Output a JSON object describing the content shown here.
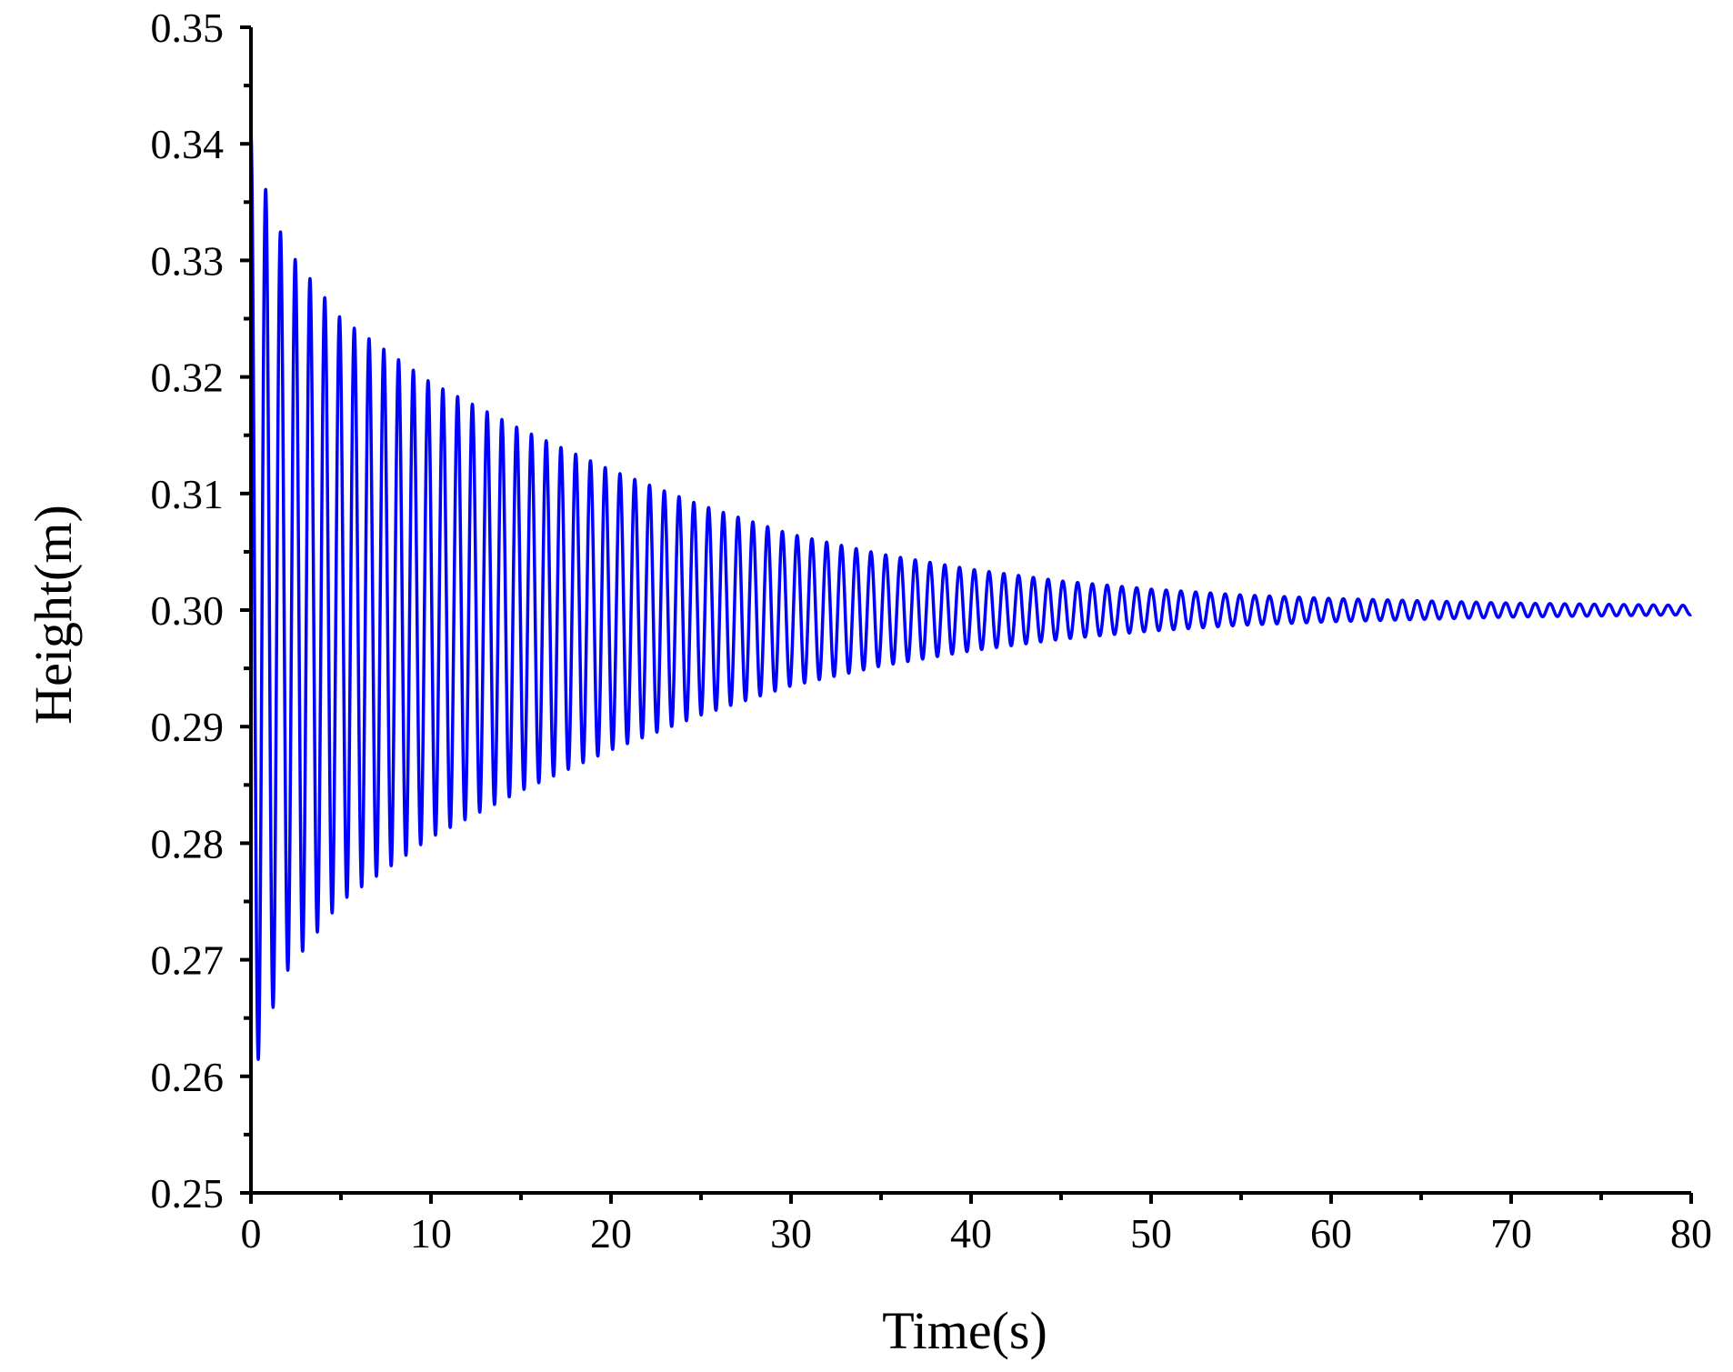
{
  "chart_data": {
    "type": "line",
    "title": "",
    "xlabel": "Time(s)",
    "ylabel": "Height(m)",
    "xlim": [
      0,
      80
    ],
    "ylim": [
      0.25,
      0.35
    ],
    "x_ticks": [
      0,
      10,
      20,
      30,
      40,
      50,
      60,
      70,
      80
    ],
    "x_tick_labels": [
      "0",
      "10",
      "20",
      "30",
      "40",
      "50",
      "60",
      "70",
      "80"
    ],
    "y_ticks": [
      0.25,
      0.26,
      0.27,
      0.28,
      0.29,
      0.3,
      0.31,
      0.32,
      0.33,
      0.34,
      0.35
    ],
    "y_tick_labels": [
      "0.25",
      "0.26",
      "0.27",
      "0.28",
      "0.29",
      "0.30",
      "0.31",
      "0.32",
      "0.33",
      "0.34",
      "0.35"
    ],
    "grid": false,
    "line_color": "#0000ff",
    "series": [
      {
        "equilibrium": 0.3,
        "period": 0.82,
        "envelope_time": [
          0,
          1,
          2,
          5,
          10,
          15,
          20,
          25,
          30,
          35,
          40,
          45,
          50,
          55,
          60,
          65,
          70,
          75,
          80
        ],
        "envelope_amplitude": [
          0.041,
          0.035,
          0.031,
          0.025,
          0.0195,
          0.0155,
          0.012,
          0.009,
          0.0065,
          0.0048,
          0.0035,
          0.0025,
          0.0018,
          0.0013,
          0.001,
          0.0008,
          0.0006,
          0.0005,
          0.0004
        ]
      }
    ]
  }
}
